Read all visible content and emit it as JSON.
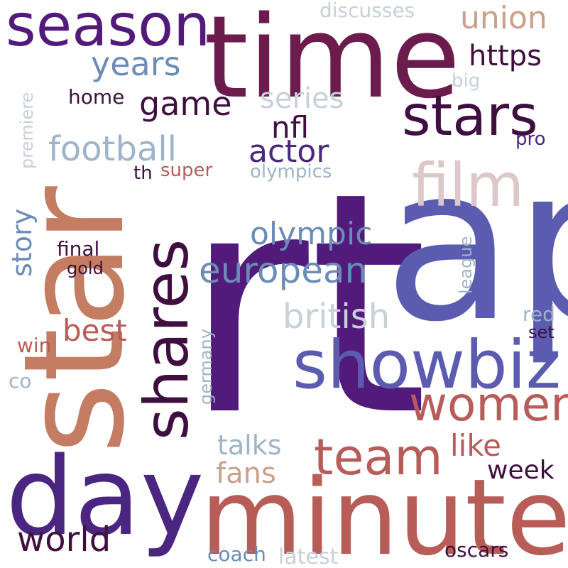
{
  "palette": {
    "deep_purple": "#521a7a",
    "indigo": "#5b5cb0",
    "violet": "#4a2680",
    "wine": "#6b1c4d",
    "dark_plum": "#3f0f3f",
    "clay": "#c47c62",
    "rose": "#b85c58",
    "tan": "#caa08a",
    "steel": "#6b8cb8",
    "light_blue": "#9fb4c8",
    "pale": "#c8d0d8",
    "pinkgrey": "#dcc8c8",
    "background": "#ffffff"
  },
  "words": [
    {
      "text": "rt",
      "color": "deep_purple"
    },
    {
      "text": "ap",
      "color": "indigo"
    },
    {
      "text": "star",
      "color": "clay"
    },
    {
      "text": "time",
      "color": "wine"
    },
    {
      "text": "minute",
      "color": "rose"
    },
    {
      "text": "day",
      "color": "violet"
    },
    {
      "text": "showbiz",
      "color": "indigo"
    },
    {
      "text": "shares",
      "color": "dark_plum"
    },
    {
      "text": "season",
      "color": "deep_purple"
    },
    {
      "text": "film",
      "color": "pinkgrey"
    },
    {
      "text": "stars",
      "color": "dark_plum"
    },
    {
      "text": "women",
      "color": "rose"
    },
    {
      "text": "team",
      "color": "rose"
    },
    {
      "text": "european",
      "color": "steel"
    },
    {
      "text": "british",
      "color": "pale"
    },
    {
      "text": "football",
      "color": "light_blue"
    },
    {
      "text": "world",
      "color": "dark_plum"
    },
    {
      "text": "actor",
      "color": "violet"
    },
    {
      "text": "olympic",
      "color": "steel"
    },
    {
      "text": "game",
      "color": "dark_plum"
    },
    {
      "text": "series",
      "color": "pale"
    },
    {
      "text": "years",
      "color": "steel"
    },
    {
      "text": "union",
      "color": "tan"
    },
    {
      "text": "https",
      "color": "dark_plum"
    },
    {
      "text": "nfl",
      "color": "dark_plum"
    },
    {
      "text": "best",
      "color": "rose"
    },
    {
      "text": "story",
      "color": "steel"
    },
    {
      "text": "fans",
      "color": "tan"
    },
    {
      "text": "talks",
      "color": "light_blue"
    },
    {
      "text": "like",
      "color": "rose"
    },
    {
      "text": "week",
      "color": "dark_plum"
    },
    {
      "text": "discusses",
      "color": "pale"
    },
    {
      "text": "home",
      "color": "dark_plum"
    },
    {
      "text": "olympics",
      "color": "light_blue"
    },
    {
      "text": "super",
      "color": "rose"
    },
    {
      "text": "th",
      "color": "dark_plum"
    },
    {
      "text": "pro",
      "color": "violet"
    },
    {
      "text": "big",
      "color": "pale"
    },
    {
      "text": "premiere",
      "color": "pale"
    },
    {
      "text": "final",
      "color": "dark_plum"
    },
    {
      "text": "gold",
      "color": "dark_plum"
    },
    {
      "text": "league",
      "color": "light_blue"
    },
    {
      "text": "red",
      "color": "light_blue"
    },
    {
      "text": "set",
      "color": "dark_plum"
    },
    {
      "text": "win",
      "color": "rose"
    },
    {
      "text": "germany",
      "color": "light_blue"
    },
    {
      "text": "co",
      "color": "light_blue"
    },
    {
      "text": "coach",
      "color": "steel"
    },
    {
      "text": "latest",
      "color": "pale"
    },
    {
      "text": "oscars",
      "color": "dark_plum"
    }
  ]
}
